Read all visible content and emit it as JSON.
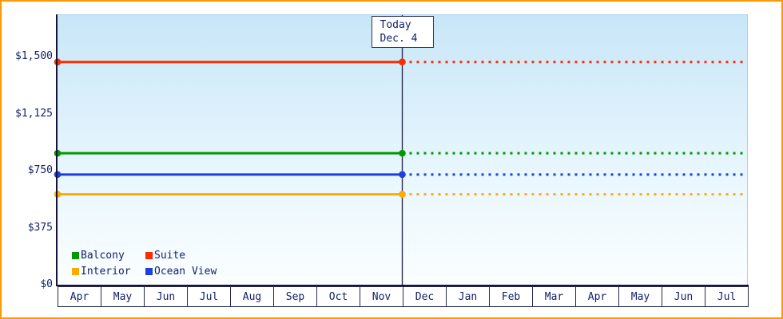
{
  "chart_data": {
    "type": "line",
    "title": "",
    "x_categories": [
      "Apr",
      "May",
      "Jun",
      "Jul",
      "Aug",
      "Sep",
      "Oct",
      "Nov",
      "Dec",
      "Jan",
      "Feb",
      "Mar",
      "Apr",
      "May",
      "Jun",
      "Jul"
    ],
    "y_ticks": [
      {
        "label": "$0",
        "value": 0
      },
      {
        "label": "$375",
        "value": 375
      },
      {
        "label": "$750",
        "value": 750
      },
      {
        "label": "$1,125",
        "value": 1125
      },
      {
        "label": "$1,500",
        "value": 1500
      }
    ],
    "ylim": [
      0,
      1500
    ],
    "series": [
      {
        "name": "Balcony",
        "value": 870,
        "color": "#009900"
      },
      {
        "name": "Suite",
        "value": 1470,
        "color": "#ff2a00"
      },
      {
        "name": "Interior",
        "value": 600,
        "color": "#ffaa00"
      },
      {
        "name": "Ocean View",
        "value": 730,
        "color": "#1c3fdd"
      }
    ],
    "today": {
      "line1": "Today",
      "line2": "Dec. 4",
      "x_index": 8
    },
    "legend_position": "bottom-left",
    "grid": false,
    "style": {
      "frame_border": "#ff9900",
      "axis_color": "#14143c",
      "text_color": "#13226b",
      "today_line_color": "#2a2a50",
      "solid_segment": "history",
      "dashed_segment": "forecast"
    }
  }
}
